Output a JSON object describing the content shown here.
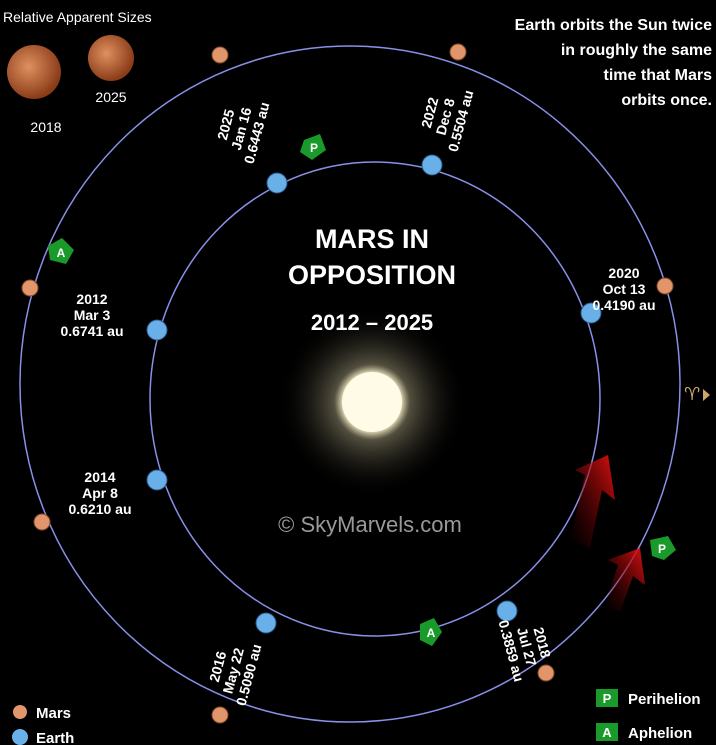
{
  "title": [
    "MARS IN",
    "OPPOSITION"
  ],
  "subtitle": "2012 – 2025",
  "note": [
    "Earth orbits the Sun twice",
    "in roughly the same",
    "time that Mars",
    "orbits once."
  ],
  "sizes": {
    "title": "Relative Apparent Sizes",
    "large": "2018",
    "small": "2025"
  },
  "oppositions": [
    {
      "year": "2012",
      "date": "Mar 3",
      "distance": "0.6741 au"
    },
    {
      "year": "2014",
      "date": "Apr 8",
      "distance": "0.6210 au"
    },
    {
      "year": "2016",
      "date": "May 22",
      "distance": "0.5090 au"
    },
    {
      "year": "2018",
      "date": "Jul 27",
      "distance": "0.3859 au"
    },
    {
      "year": "2020",
      "date": "Oct 13",
      "distance": "0.4190 au"
    },
    {
      "year": "2022",
      "date": "Dec 8",
      "distance": "0.5504 au"
    },
    {
      "year": "2025",
      "date": "Jan 16",
      "distance": "0.6443 au"
    }
  ],
  "legend": {
    "mars": "Mars",
    "earth": "Earth",
    "perihelion": {
      "letter": "P",
      "label": "Perihelion"
    },
    "aphelion": {
      "letter": "A",
      "label": "Aphelion"
    }
  },
  "vernal_equinox": "♈",
  "watermark": "© SkyMarvels.com"
}
